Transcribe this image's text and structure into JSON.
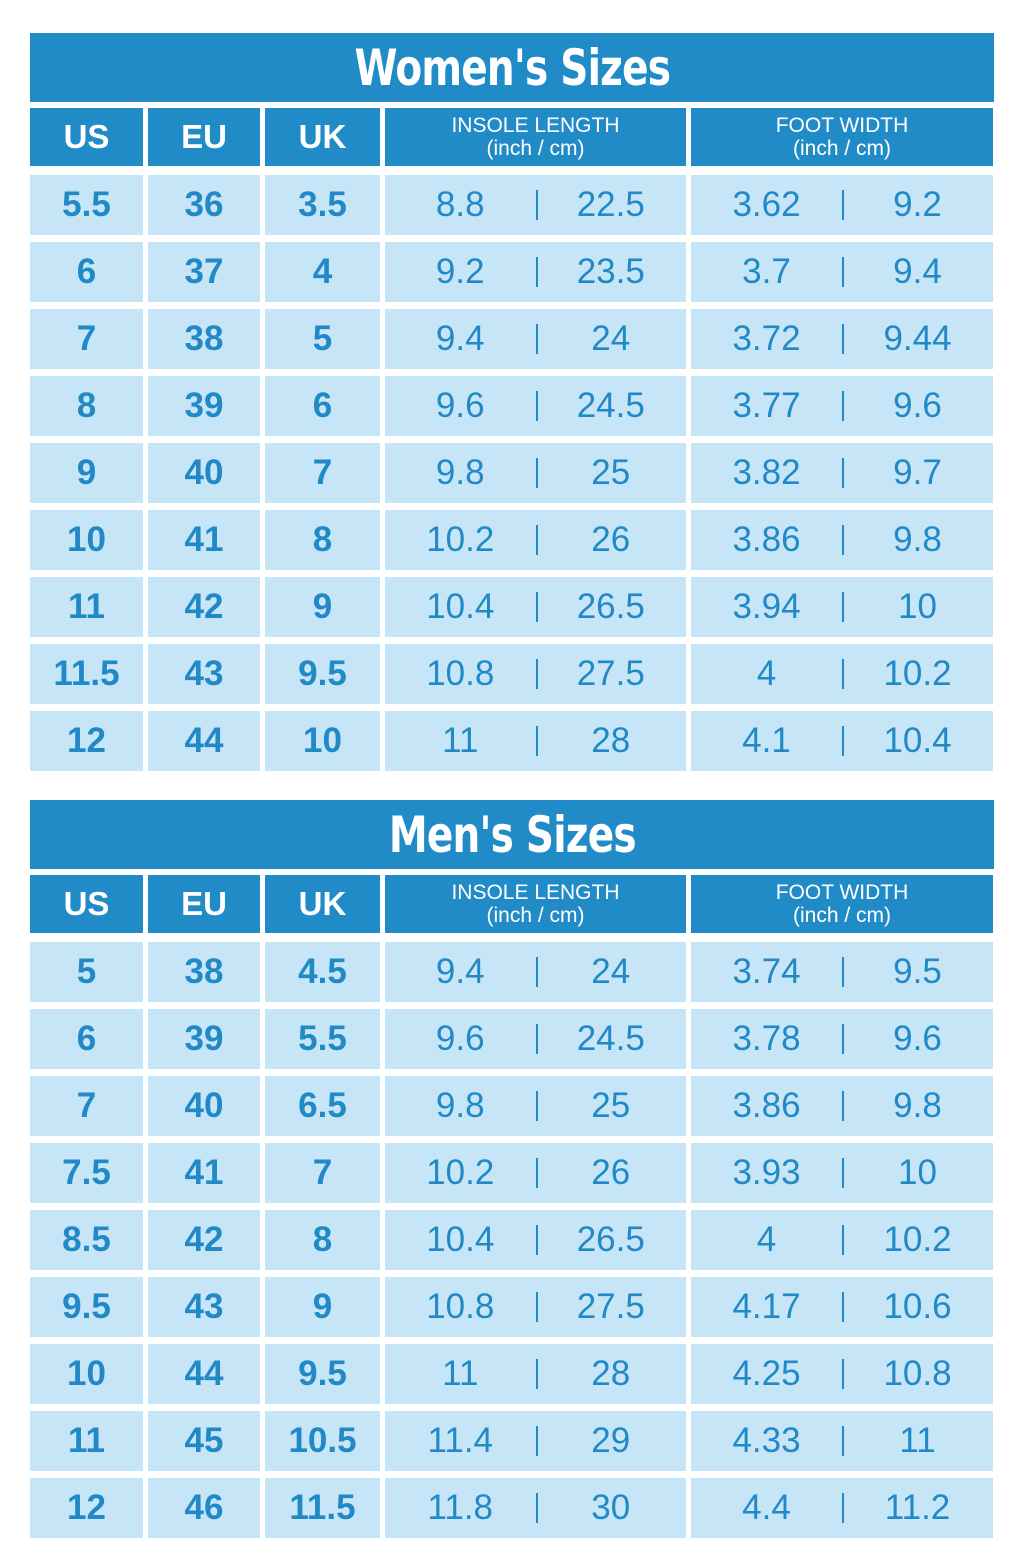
{
  "colors": {
    "header": "#218bc8",
    "cell": "#c6e5f7",
    "text": "#2089c6"
  },
  "columns": {
    "us": "US",
    "eu": "EU",
    "uk": "UK",
    "insole": "INSOLE LENGTH",
    "insole_unit": "(inch / cm)",
    "width": "FOOT WIDTH",
    "width_unit": "(inch / cm)"
  },
  "tables": [
    {
      "title": "Women's Sizes",
      "rows": [
        [
          "5.5",
          "36",
          "3.5",
          "8.8",
          "22.5",
          "3.62",
          "9.2"
        ],
        [
          "6",
          "37",
          "4",
          "9.2",
          "23.5",
          "3.7",
          "9.4"
        ],
        [
          "7",
          "38",
          "5",
          "9.4",
          "24",
          "3.72",
          "9.44"
        ],
        [
          "8",
          "39",
          "6",
          "9.6",
          "24.5",
          "3.77",
          "9.6"
        ],
        [
          "9",
          "40",
          "7",
          "9.8",
          "25",
          "3.82",
          "9.7"
        ],
        [
          "10",
          "41",
          "8",
          "10.2",
          "26",
          "3.86",
          "9.8"
        ],
        [
          "11",
          "42",
          "9",
          "10.4",
          "26.5",
          "3.94",
          "10"
        ],
        [
          "11.5",
          "43",
          "9.5",
          "10.8",
          "27.5",
          "4",
          "10.2"
        ],
        [
          "12",
          "44",
          "10",
          "11",
          "28",
          "4.1",
          "10.4"
        ]
      ]
    },
    {
      "title": "Men's Sizes",
      "rows": [
        [
          "5",
          "38",
          "4.5",
          "9.4",
          "24",
          "3.74",
          "9.5"
        ],
        [
          "6",
          "39",
          "5.5",
          "9.6",
          "24.5",
          "3.78",
          "9.6"
        ],
        [
          "7",
          "40",
          "6.5",
          "9.8",
          "25",
          "3.86",
          "9.8"
        ],
        [
          "7.5",
          "41",
          "7",
          "10.2",
          "26",
          "3.93",
          "10"
        ],
        [
          "8.5",
          "42",
          "8",
          "10.4",
          "26.5",
          "4",
          "10.2"
        ],
        [
          "9.5",
          "43",
          "9",
          "10.8",
          "27.5",
          "4.17",
          "10.6"
        ],
        [
          "10",
          "44",
          "9.5",
          "11",
          "28",
          "4.25",
          "10.8"
        ],
        [
          "11",
          "45",
          "10.5",
          "11.4",
          "29",
          "4.33",
          "11"
        ],
        [
          "12",
          "46",
          "11.5",
          "11.8",
          "30",
          "4.4",
          "11.2"
        ]
      ]
    }
  ]
}
